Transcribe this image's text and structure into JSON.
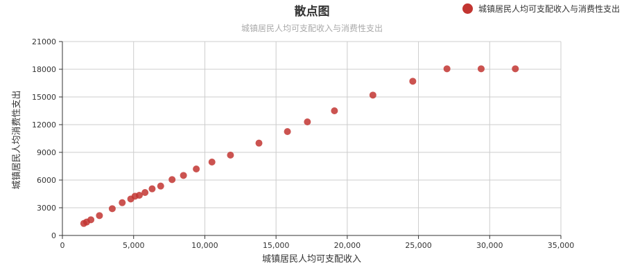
{
  "chart_data": {
    "type": "scatter",
    "title": "散点图",
    "subtitle": "城镇居民人均可支配收入与消费性支出",
    "xlabel": "城镇居民人均可支配收入",
    "ylabel": "城镇居民人均消费性支出",
    "xlim": [
      0,
      35000
    ],
    "ylim": [
      0,
      21000
    ],
    "xticks": [
      0,
      5000,
      10000,
      15000,
      20000,
      25000,
      30000,
      35000
    ],
    "xtick_labels": [
      "0",
      "5,000",
      "10,000",
      "15,000",
      "20,000",
      "25,000",
      "30,000",
      "35,000"
    ],
    "yticks": [
      0,
      3000,
      6000,
      9000,
      12000,
      15000,
      18000,
      21000
    ],
    "ytick_labels": [
      "0",
      "3000",
      "6000",
      "9000",
      "12000",
      "15000",
      "18000",
      "21000"
    ],
    "grid": true,
    "legend_position": "top-right",
    "series": [
      {
        "name": "城镇居民人均可支配收入与消费性支出",
        "color": "#c23531",
        "points": [
          [
            1500,
            1300
          ],
          [
            1700,
            1450
          ],
          [
            2000,
            1700
          ],
          [
            2600,
            2150
          ],
          [
            3500,
            2900
          ],
          [
            4200,
            3550
          ],
          [
            4800,
            3950
          ],
          [
            5100,
            4250
          ],
          [
            5400,
            4350
          ],
          [
            5800,
            4650
          ],
          [
            6300,
            5050
          ],
          [
            6900,
            5350
          ],
          [
            7700,
            6050
          ],
          [
            8500,
            6500
          ],
          [
            9400,
            7200
          ],
          [
            10500,
            7950
          ],
          [
            11800,
            8700
          ],
          [
            13800,
            10000
          ],
          [
            15800,
            11250
          ],
          [
            17200,
            12300
          ],
          [
            19100,
            13500
          ],
          [
            21800,
            15200
          ],
          [
            24600,
            16700
          ],
          [
            27000,
            18050
          ],
          [
            29400,
            18050
          ],
          [
            31800,
            18050
          ]
        ]
      }
    ]
  }
}
